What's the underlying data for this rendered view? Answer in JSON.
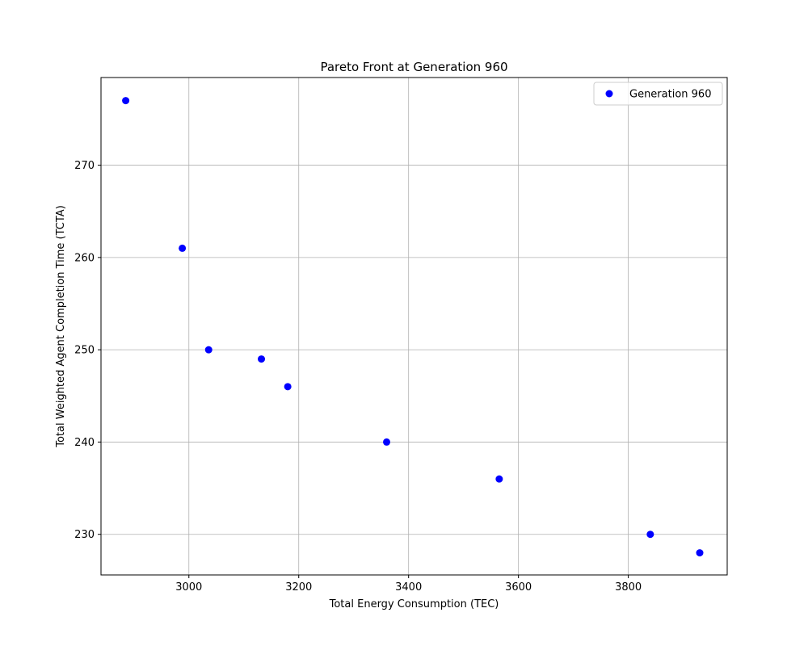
{
  "chart_data": {
    "type": "scatter",
    "title": "Pareto Front at Generation 960",
    "xlabel": "Total Energy Consumption (TEC)",
    "ylabel": "Total Weighted Agent Completion Time (TCTA)",
    "xlim": [
      2840,
      3980
    ],
    "ylim": [
      225.6,
      279.5
    ],
    "xticks": [
      3000,
      3200,
      3400,
      3600,
      3800
    ],
    "yticks": [
      230,
      240,
      250,
      260,
      270
    ],
    "grid": true,
    "legend_position": "top-right",
    "series": [
      {
        "name": "Generation 960",
        "color": "#0000ff",
        "x": [
          2885,
          2988,
          3036,
          3132,
          3180,
          3360,
          3565,
          3840,
          3930
        ],
        "y": [
          277,
          261,
          250,
          249,
          246,
          240,
          236,
          230,
          228
        ]
      }
    ]
  }
}
